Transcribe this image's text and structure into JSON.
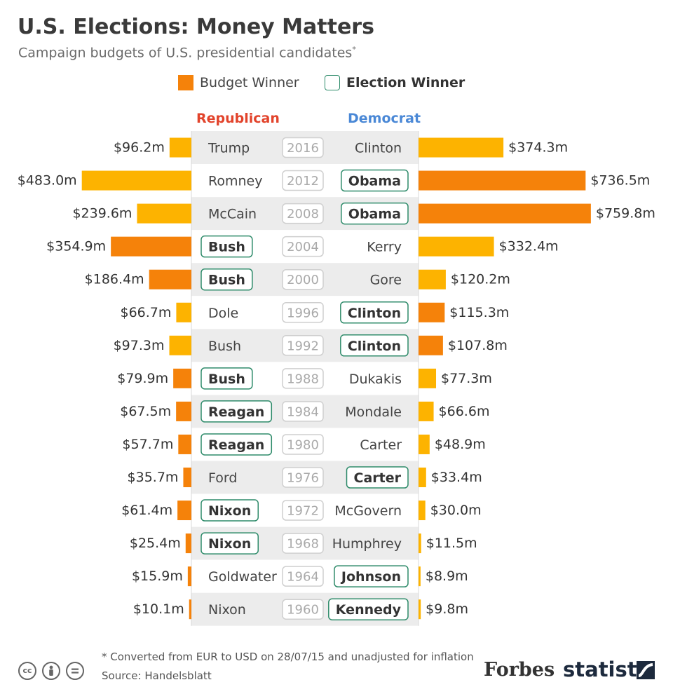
{
  "header": {
    "title": "U.S. Elections: Money Matters",
    "subtitle": "Campaign budgets of U.S. presidential candidates",
    "subtitle_mark": "*"
  },
  "legend": {
    "budget_winner": "Budget Winner",
    "election_winner": "Election Winner"
  },
  "columns": {
    "republican": "Republican",
    "democrat": "Democrat"
  },
  "colors": {
    "budget_winner": "#f5820a",
    "budget_other": "#fdb300",
    "election_winner_outline": "#2e8b6a",
    "republican": "#e2432b",
    "democrat": "#4a88d6",
    "row_band": "#ececec"
  },
  "chart_data": {
    "type": "bar",
    "layout": "diverging",
    "unit": "$m",
    "xlabel": "",
    "ylabel": "",
    "series": [
      {
        "name": "Republican"
      },
      {
        "name": "Democrat"
      }
    ],
    "rows": [
      {
        "year": "2016",
        "rep": "Trump",
        "rep_value": 96.2,
        "rep_label": "$96.2m",
        "dem": "Clinton",
        "dem_value": 374.3,
        "dem_label": "$374.3m",
        "election_winner": "none",
        "budget_winner": "none"
      },
      {
        "year": "2012",
        "rep": "Romney",
        "rep_value": 483.0,
        "rep_label": "$483.0m",
        "dem": "Obama",
        "dem_value": 736.5,
        "dem_label": "$736.5m",
        "election_winner": "dem",
        "budget_winner": "dem"
      },
      {
        "year": "2008",
        "rep": "McCain",
        "rep_value": 239.6,
        "rep_label": "$239.6m",
        "dem": "Obama",
        "dem_value": 759.8,
        "dem_label": "$759.8m",
        "election_winner": "dem",
        "budget_winner": "dem"
      },
      {
        "year": "2004",
        "rep": "Bush",
        "rep_value": 354.9,
        "rep_label": "$354.9m",
        "dem": "Kerry",
        "dem_value": 332.4,
        "dem_label": "$332.4m",
        "election_winner": "rep",
        "budget_winner": "rep"
      },
      {
        "year": "2000",
        "rep": "Bush",
        "rep_value": 186.4,
        "rep_label": "$186.4m",
        "dem": "Gore",
        "dem_value": 120.2,
        "dem_label": "$120.2m",
        "election_winner": "rep",
        "budget_winner": "rep"
      },
      {
        "year": "1996",
        "rep": "Dole",
        "rep_value": 66.7,
        "rep_label": "$66.7m",
        "dem": "Clinton",
        "dem_value": 115.3,
        "dem_label": "$115.3m",
        "election_winner": "dem",
        "budget_winner": "dem"
      },
      {
        "year": "1992",
        "rep": "Bush",
        "rep_value": 97.3,
        "rep_label": "$97.3m",
        "dem": "Clinton",
        "dem_value": 107.8,
        "dem_label": "$107.8m",
        "election_winner": "dem",
        "budget_winner": "dem"
      },
      {
        "year": "1988",
        "rep": "Bush",
        "rep_value": 79.9,
        "rep_label": "$79.9m",
        "dem": "Dukakis",
        "dem_value": 77.3,
        "dem_label": "$77.3m",
        "election_winner": "rep",
        "budget_winner": "rep"
      },
      {
        "year": "1984",
        "rep": "Reagan",
        "rep_value": 67.5,
        "rep_label": "$67.5m",
        "dem": "Mondale",
        "dem_value": 66.6,
        "dem_label": "$66.6m",
        "election_winner": "rep",
        "budget_winner": "rep"
      },
      {
        "year": "1980",
        "rep": "Reagan",
        "rep_value": 57.7,
        "rep_label": "$57.7m",
        "dem": "Carter",
        "dem_value": 48.9,
        "dem_label": "$48.9m",
        "election_winner": "rep",
        "budget_winner": "rep"
      },
      {
        "year": "1976",
        "rep": "Ford",
        "rep_value": 35.7,
        "rep_label": "$35.7m",
        "dem": "Carter",
        "dem_value": 33.4,
        "dem_label": "$33.4m",
        "election_winner": "dem",
        "budget_winner": "rep"
      },
      {
        "year": "1972",
        "rep": "Nixon",
        "rep_value": 61.4,
        "rep_label": "$61.4m",
        "dem": "McGovern",
        "dem_value": 30.0,
        "dem_label": "$30.0m",
        "election_winner": "rep",
        "budget_winner": "rep"
      },
      {
        "year": "1968",
        "rep": "Nixon",
        "rep_value": 25.4,
        "rep_label": "$25.4m",
        "dem": "Humphrey",
        "dem_value": 11.5,
        "dem_label": "$11.5m",
        "election_winner": "rep",
        "budget_winner": "rep"
      },
      {
        "year": "1964",
        "rep": "Goldwater",
        "rep_value": 15.9,
        "rep_label": "$15.9m",
        "dem": "Johnson",
        "dem_value": 8.9,
        "dem_label": "$8.9m",
        "election_winner": "dem",
        "budget_winner": "rep"
      },
      {
        "year": "1960",
        "rep": "Nixon",
        "rep_value": 10.1,
        "rep_label": "$10.1m",
        "dem": "Kennedy",
        "dem_value": 9.8,
        "dem_label": "$9.8m",
        "election_winner": "dem",
        "budget_winner": "rep"
      }
    ]
  },
  "footer": {
    "footnote": "* Converted from EUR to USD on 28/07/15 and unadjusted for inflation",
    "source": "Source: Handelsblatt",
    "cc_icons": [
      "cc-icon",
      "by-icon",
      "nd-icon"
    ],
    "cc_label": "cc",
    "forbes": "Forbes",
    "statista": "statista"
  }
}
